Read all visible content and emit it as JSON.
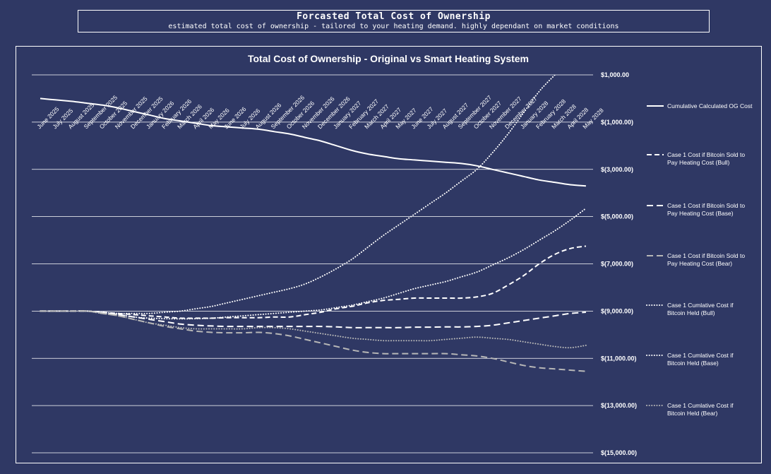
{
  "header": {
    "title": "Forcasted Total Cost of Ownership",
    "subtitle": "estimated total cost of ownership - tailored to your heating demand. highly dependant on market conditions"
  },
  "colors": {
    "background": "#2f3864",
    "foreground": "#ffffff",
    "bear_series": "#b7b7b7"
  },
  "chart_data": {
    "type": "line",
    "title": "Total Cost of Ownership - Original vs Smart Heating System",
    "ylim": [
      -15000,
      1000
    ],
    "y_ticks": [
      1000,
      -1000,
      -3000,
      -5000,
      -7000,
      -9000,
      -11000,
      -13000,
      -15000
    ],
    "y_tick_labels": [
      "$1,000.00",
      "$(1,000.00)",
      "$(3,000.00)",
      "$(5,000.00)",
      "$(7,000.00)",
      "$(9,000.00)",
      "$(11,000.00)",
      "$(13,000.00)",
      "$(15,000.00)"
    ],
    "y_axis_side": "right",
    "grid": true,
    "legend_position": "right",
    "x": [
      "June 2025",
      "July 2025",
      "August 2025",
      "September 2025",
      "October 2025",
      "November 2025",
      "December 2025",
      "January 2026",
      "February 2026",
      "March 2026",
      "April 2026",
      "May 2026",
      "June 2026",
      "July 2026",
      "August 2026",
      "September 2026",
      "October 2026",
      "November 2026",
      "December 2026",
      "January 2027",
      "February 2027",
      "March 2027",
      "April 2027",
      "May 2027",
      "June 2027",
      "July 2027",
      "August 2027",
      "September 2027",
      "October 2027",
      "November 2027",
      "December 2027",
      "January 2028",
      "February 2028",
      "March 2028",
      "April 2028",
      "May 2028"
    ],
    "series": [
      {
        "name": "Cumulative Calculated OG Cost",
        "style": "solid",
        "color": "#ffffff",
        "values": [
          0,
          -60,
          -120,
          -200,
          -280,
          -400,
          -550,
          -700,
          -850,
          -950,
          -1050,
          -1150,
          -1200,
          -1250,
          -1300,
          -1400,
          -1500,
          -1650,
          -1800,
          -2000,
          -2200,
          -2350,
          -2450,
          -2550,
          -2600,
          -2650,
          -2700,
          -2750,
          -2850,
          -3000,
          -3150,
          -3300,
          -3450,
          -3550,
          -3650,
          -3700
        ]
      },
      {
        "name": "Case 1 Cost if Bitcoin Sold to Pay Heating Cost (Bull)",
        "style": "dash",
        "color": "#ffffff",
        "values": [
          -9000,
          -9000,
          -9000,
          -9000,
          -9050,
          -9100,
          -9150,
          -9200,
          -9250,
          -9300,
          -9300,
          -9300,
          -9280,
          -9280,
          -9280,
          -9250,
          -9250,
          -9150,
          -9050,
          -8900,
          -8800,
          -8650,
          -8550,
          -8500,
          -8450,
          -8450,
          -8450,
          -8450,
          -8400,
          -8250,
          -7900,
          -7500,
          -7000,
          -6600,
          -6350,
          -6250
        ]
      },
      {
        "name": "Case 1 Cost if Bitcoin Sold to Pay Heating Cost (Base)",
        "style": "longdash",
        "color": "#ffffff",
        "values": [
          -9000,
          -9000,
          -9000,
          -9000,
          -9070,
          -9150,
          -9250,
          -9350,
          -9450,
          -9550,
          -9600,
          -9630,
          -9650,
          -9650,
          -9650,
          -9650,
          -9650,
          -9650,
          -9650,
          -9670,
          -9700,
          -9700,
          -9700,
          -9700,
          -9680,
          -9680,
          -9670,
          -9670,
          -9650,
          -9600,
          -9500,
          -9400,
          -9300,
          -9200,
          -9100,
          -9050
        ]
      },
      {
        "name": "Case 1 Cost if Bitcoin Sold to Pay Heating Cost (Bear)",
        "style": "longdash",
        "color": "#b7b7b7",
        "values": [
          -9000,
          -9000,
          -9000,
          -9000,
          -9100,
          -9200,
          -9350,
          -9500,
          -9650,
          -9750,
          -9850,
          -9900,
          -9920,
          -9920,
          -9900,
          -9950,
          -10050,
          -10200,
          -10350,
          -10500,
          -10650,
          -10750,
          -10800,
          -10800,
          -10800,
          -10800,
          -10800,
          -10850,
          -10900,
          -11000,
          -11150,
          -11300,
          -11400,
          -11450,
          -11500,
          -11550
        ]
      },
      {
        "name": "Case 1 Cumlative Cost if Bitcoin Held (Bull)",
        "style": "dot",
        "color": "#ffffff",
        "values": [
          -9000,
          -9000,
          -9000,
          -9000,
          -9050,
          -9100,
          -9100,
          -9100,
          -9050,
          -9000,
          -8900,
          -8800,
          -8650,
          -8500,
          -8350,
          -8200,
          -8050,
          -7850,
          -7550,
          -7200,
          -6800,
          -6300,
          -5800,
          -5350,
          -4900,
          -4450,
          -4000,
          -3500,
          -3000,
          -2300,
          -1500,
          -600,
          300,
          1000,
          1700,
          2400
        ]
      },
      {
        "name": "Case 1 Cumlative Cost if Bitcoin Held (Base)",
        "style": "dot",
        "color": "#ffffff",
        "values": [
          -9000,
          -9000,
          -9000,
          -9000,
          -9100,
          -9150,
          -9250,
          -9300,
          -9320,
          -9330,
          -9320,
          -9300,
          -9250,
          -9200,
          -9150,
          -9100,
          -9050,
          -9000,
          -8950,
          -8850,
          -8750,
          -8600,
          -8450,
          -8250,
          -8050,
          -7900,
          -7750,
          -7550,
          -7350,
          -7050,
          -6750,
          -6400,
          -6000,
          -5600,
          -5150,
          -4650
        ]
      },
      {
        "name": "Case 1 Cumlative Cost if Bitcoin Held (Bear)",
        "style": "dot",
        "color": "#b7b7b7",
        "values": [
          -9000,
          -9000,
          -9000,
          -9000,
          -9100,
          -9200,
          -9350,
          -9500,
          -9600,
          -9700,
          -9750,
          -9750,
          -9750,
          -9750,
          -9700,
          -9700,
          -9750,
          -9850,
          -9950,
          -10050,
          -10150,
          -10200,
          -10250,
          -10250,
          -10250,
          -10250,
          -10200,
          -10150,
          -10100,
          -10150,
          -10200,
          -10300,
          -10400,
          -10500,
          -10550,
          -10450
        ]
      }
    ]
  }
}
